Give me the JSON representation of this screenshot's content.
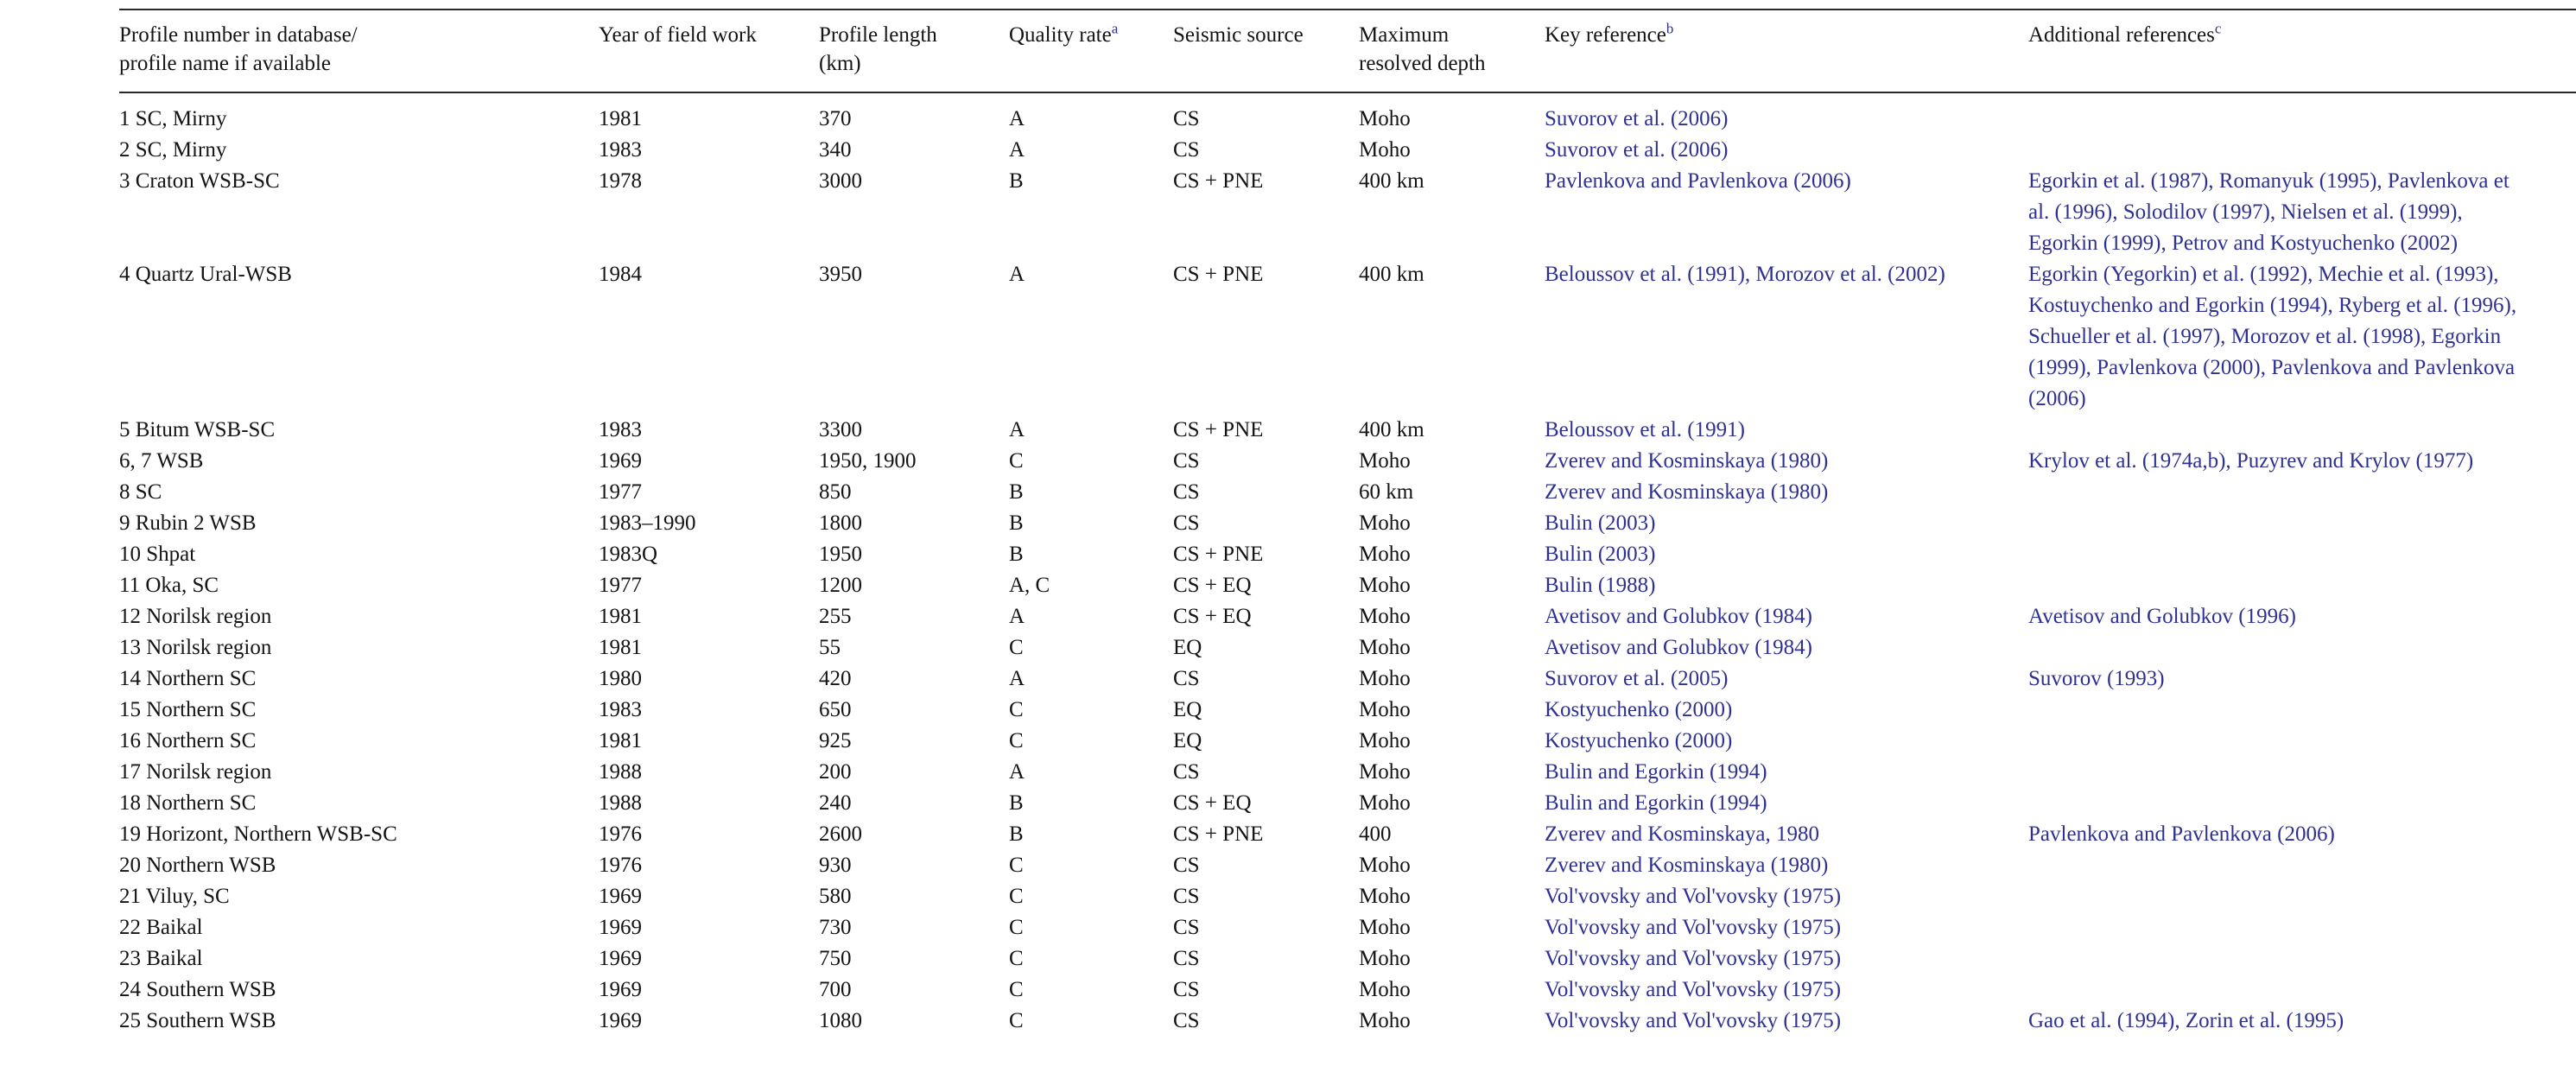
{
  "theme": {
    "link_color": "#2e3192",
    "text_color": "#141414",
    "rule_color": "#2a2a2a",
    "background": "#ffffff"
  },
  "table": {
    "column_keys": [
      "name",
      "year",
      "length",
      "quality",
      "source",
      "depth",
      "key_ref",
      "add_ref"
    ],
    "columns": [
      {
        "lines": [
          "Profile number in database/",
          "profile name if available"
        ]
      },
      {
        "lines": [
          "Year of field work"
        ]
      },
      {
        "lines": [
          "Profile length",
          "(km)"
        ]
      },
      {
        "lines": [
          "Quality rate"
        ],
        "sup": "a"
      },
      {
        "lines": [
          "Seismic source"
        ]
      },
      {
        "lines": [
          "Maximum",
          "resolved depth"
        ]
      },
      {
        "lines": [
          "Key reference"
        ],
        "sup": "b"
      },
      {
        "lines": [
          "Additional references"
        ],
        "sup": "c"
      }
    ],
    "rows": [
      {
        "name": "1 SC, Mirny",
        "year": "1981",
        "length": "370",
        "quality": "A",
        "source": "CS",
        "depth": "Moho",
        "key_ref": "Suvorov et al. (2006)",
        "add_ref": ""
      },
      {
        "name": "2 SC, Mirny",
        "year": "1983",
        "length": "340",
        "quality": "A",
        "source": "CS",
        "depth": "Moho",
        "key_ref": "Suvorov et al. (2006)",
        "add_ref": ""
      },
      {
        "name": "3 Craton WSB-SC",
        "year": "1978",
        "length": "3000",
        "quality": "B",
        "source": "CS + PNE",
        "depth": "400 km",
        "key_ref": "Pavlenkova and Pavlenkova (2006)",
        "add_ref": "Egorkin et al. (1987), Romanyuk (1995), Pavlenkova et al. (1996), Solodilov (1997), Nielsen et al. (1999), Egorkin (1999), Petrov and Kostyuchenko (2002)"
      },
      {
        "name": "4 Quartz Ural-WSB",
        "year": "1984",
        "length": "3950",
        "quality": "A",
        "source": "CS + PNE",
        "depth": "400 km",
        "key_ref": "Beloussov et al. (1991), Morozov et al. (2002)",
        "add_ref": "Egorkin (Yegorkin) et al. (1992), Mechie et al. (1993), Kostuychenko and Egorkin (1994), Ryberg et al. (1996), Schueller et al. (1997), Morozov et al. (1998), Egorkin (1999), Pavlenkova (2000), Pavlenkova and Pavlenkova (2006)"
      },
      {
        "name": "5 Bitum WSB-SC",
        "year": "1983",
        "length": "3300",
        "quality": "A",
        "source": "CS + PNE",
        "depth": "400 km",
        "key_ref": "Beloussov et al. (1991)",
        "add_ref": ""
      },
      {
        "name": "6, 7 WSB",
        "year": "1969",
        "length": "1950, 1900",
        "quality": "C",
        "source": "CS",
        "depth": "Moho",
        "key_ref": "Zverev and Kosminskaya (1980)",
        "add_ref": "Krylov et al. (1974a,b), Puzyrev and Krylov (1977)"
      },
      {
        "name": "8 SC",
        "year": "1977",
        "length": "850",
        "quality": "B",
        "source": "CS",
        "depth": "60 km",
        "key_ref": "Zverev and Kosminskaya (1980)",
        "add_ref": ""
      },
      {
        "name": "9 Rubin 2 WSB",
        "year": "1983–1990",
        "length": "1800",
        "quality": "B",
        "source": "CS",
        "depth": "Moho",
        "key_ref": "Bulin (2003)",
        "add_ref": ""
      },
      {
        "name": "10 Shpat",
        "year": "1983Q",
        "length": "1950",
        "quality": "B",
        "source": "CS + PNE",
        "depth": "Moho",
        "key_ref": "Bulin (2003)",
        "add_ref": ""
      },
      {
        "name": "11 Oka, SC",
        "year": "1977",
        "length": "1200",
        "quality": "A, C",
        "source": "CS + EQ",
        "depth": "Moho",
        "key_ref": "Bulin (1988)",
        "add_ref": ""
      },
      {
        "name": "12 Norilsk region",
        "year": "1981",
        "length": "255",
        "quality": "A",
        "source": "CS + EQ",
        "depth": "Moho",
        "key_ref": "Avetisov and Golubkov (1984)",
        "add_ref": "Avetisov and Golubkov (1996)"
      },
      {
        "name": "13 Norilsk region",
        "year": "1981",
        "length": "55",
        "quality": "C",
        "source": "EQ",
        "depth": "Moho",
        "key_ref": "Avetisov and Golubkov (1984)",
        "add_ref": ""
      },
      {
        "name": "14 Northern SC",
        "year": "1980",
        "length": "420",
        "quality": "A",
        "source": "CS",
        "depth": "Moho",
        "key_ref": "Suvorov et al. (2005)",
        "add_ref": "Suvorov (1993)"
      },
      {
        "name": "15 Northern SC",
        "year": "1983",
        "length": "650",
        "quality": "C",
        "source": "EQ",
        "depth": "Moho",
        "key_ref": "Kostyuchenko (2000)",
        "add_ref": ""
      },
      {
        "name": "16 Northern SC",
        "year": "1981",
        "length": "925",
        "quality": "C",
        "source": "EQ",
        "depth": "Moho",
        "key_ref": "Kostyuchenko (2000)",
        "add_ref": ""
      },
      {
        "name": "17 Norilsk region",
        "year": "1988",
        "length": "200",
        "quality": "A",
        "source": "CS",
        "depth": "Moho",
        "key_ref": "Bulin and Egorkin (1994)",
        "add_ref": ""
      },
      {
        "name": "18 Northern SC",
        "year": "1988",
        "length": "240",
        "quality": "B",
        "source": "CS + EQ",
        "depth": "Moho",
        "key_ref": "Bulin and Egorkin (1994)",
        "add_ref": ""
      },
      {
        "name": "19 Horizont, Northern WSB-SC",
        "year": "1976",
        "length": "2600",
        "quality": "B",
        "source": "CS + PNE",
        "depth": "400",
        "key_ref": "Zverev and Kosminskaya, 1980",
        "add_ref": "Pavlenkova and Pavlenkova (2006)"
      },
      {
        "name": "20 Northern WSB",
        "year": "1976",
        "length": "930",
        "quality": "C",
        "source": "CS",
        "depth": "Moho",
        "key_ref": "Zverev and Kosminskaya (1980)",
        "add_ref": ""
      },
      {
        "name": "21 Viluy, SC",
        "year": "1969",
        "length": "580",
        "quality": "C",
        "source": "CS",
        "depth": "Moho",
        "key_ref": "Vol'vovsky and Vol'vovsky (1975)",
        "add_ref": ""
      },
      {
        "name": "22 Baikal",
        "year": "1969",
        "length": "730",
        "quality": "C",
        "source": "CS",
        "depth": "Moho",
        "key_ref": "Vol'vovsky and Vol'vovsky (1975)",
        "add_ref": ""
      },
      {
        "name": "23 Baikal",
        "year": "1969",
        "length": "750",
        "quality": "C",
        "source": "CS",
        "depth": "Moho",
        "key_ref": "Vol'vovsky and Vol'vovsky (1975)",
        "add_ref": ""
      },
      {
        "name": "24 Southern WSB",
        "year": "1969",
        "length": "700",
        "quality": "C",
        "source": "CS",
        "depth": "Moho",
        "key_ref": "Vol'vovsky and Vol'vovsky (1975)",
        "add_ref": ""
      },
      {
        "name": "25 Southern WSB",
        "year": "1969",
        "length": "1080",
        "quality": "C",
        "source": "CS",
        "depth": "Moho",
        "key_ref": "Vol'vovsky and Vol'vovsky (1975)",
        "add_ref": "Gao et al. (1994), Zorin et al. (1995)"
      }
    ]
  }
}
